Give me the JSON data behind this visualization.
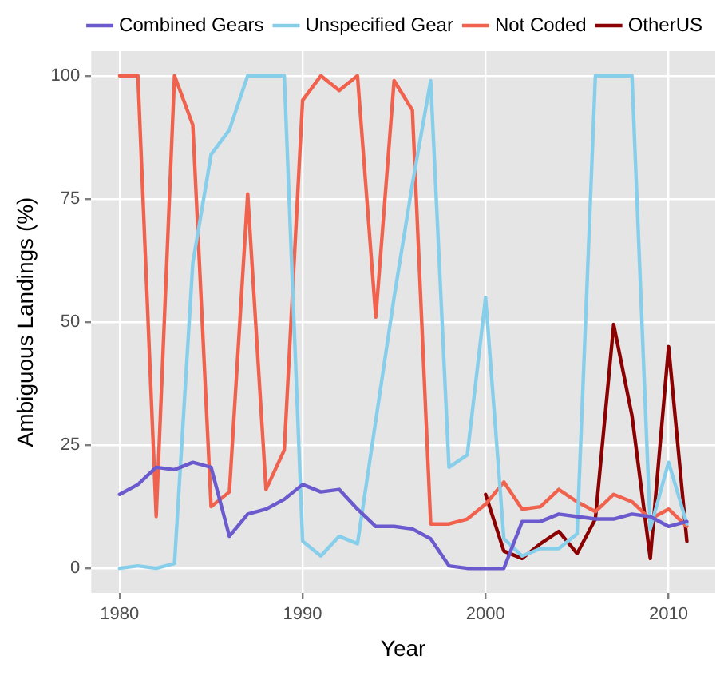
{
  "chart_data": {
    "type": "line",
    "xlabel": "Year",
    "ylabel": "Ambiguous Landings (%)",
    "x": [
      1980,
      1981,
      1982,
      1983,
      1984,
      1985,
      1986,
      1987,
      1988,
      1989,
      1990,
      1991,
      1992,
      1993,
      1994,
      1995,
      1996,
      1997,
      1998,
      1999,
      2000,
      2001,
      2002,
      2003,
      2004,
      2005,
      2006,
      2007,
      2008,
      2009,
      2010,
      2011
    ],
    "series": [
      {
        "name": "Combined Gears",
        "color": "#6a5acd",
        "values": [
          15,
          17,
          20.5,
          20,
          21.5,
          20.5,
          6.5,
          11,
          12,
          14,
          17,
          15.5,
          16,
          12,
          8.5,
          8.5,
          8,
          6,
          0.5,
          0,
          0,
          0,
          9.5,
          9.5,
          11,
          10.5,
          10,
          10,
          11,
          10.5,
          8.5,
          9.5
        ]
      },
      {
        "name": "Unspecified Gear",
        "color": "#87ceeb",
        "values": [
          0,
          0.5,
          0,
          1,
          62,
          84,
          89,
          100,
          100,
          100,
          5.5,
          2.5,
          6.5,
          5,
          30,
          55,
          78,
          99,
          20.5,
          23,
          55,
          6,
          2.5,
          4,
          4,
          7,
          100,
          100,
          100,
          8,
          21.5,
          9
        ]
      },
      {
        "name": "Not Coded",
        "color": "#f0624d",
        "values": [
          100,
          100,
          10.5,
          100,
          90,
          12.5,
          15.5,
          76,
          16,
          24,
          95,
          100,
          97,
          100,
          51,
          99,
          93,
          9,
          9,
          10,
          13,
          17.5,
          12,
          12.5,
          16,
          13.5,
          11.5,
          15,
          13.5,
          10,
          12,
          8.5
        ]
      },
      {
        "name": "OtherUS",
        "color": "#8b0000",
        "x": [
          2000,
          2001,
          2002,
          2003,
          2004,
          2005,
          2006,
          2007,
          2008,
          2009,
          2010,
          2011
        ],
        "values": [
          15,
          3.5,
          2,
          5,
          7.5,
          3,
          10,
          49.5,
          31,
          2,
          45,
          5.5
        ]
      }
    ],
    "xlim": [
      1978.45,
      2012.55
    ],
    "xticks": [
      1980,
      1990,
      2000,
      2010
    ],
    "ylim": [
      -5,
      105
    ],
    "yticks": [
      0,
      25,
      50,
      75,
      100
    ],
    "grid": true,
    "legend": "top",
    "marker": "none",
    "line_style": "solid"
  }
}
